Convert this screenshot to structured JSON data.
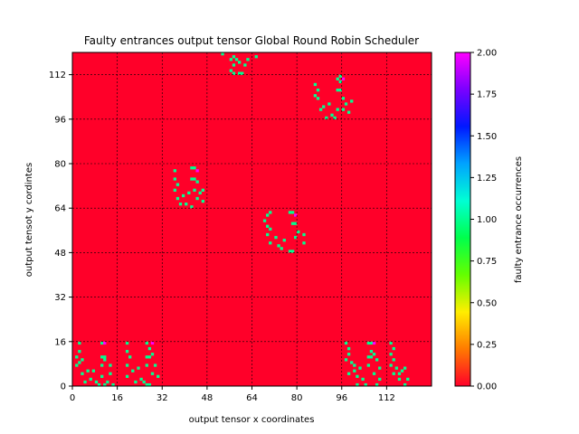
{
  "chart_data": {
    "type": "heatmap",
    "title": "Faulty entrances output tensor Global Round Robin Scheduler",
    "xlabel": "output tensor x coordinates",
    "ylabel": "output tensot y cordintes",
    "xlim": [
      0,
      128
    ],
    "ylim": [
      0,
      120
    ],
    "xticks": [
      "0",
      "16",
      "32",
      "48",
      "64",
      "80",
      "96",
      "112"
    ],
    "yticks": [
      "0",
      "16",
      "32",
      "48",
      "64",
      "80",
      "96",
      "112"
    ],
    "grid": true,
    "colorbar": {
      "label": "faulty entrance occurrences",
      "range": [
        0,
        2
      ],
      "ticks": [
        "0.00",
        "0.25",
        "0.50",
        "0.75",
        "1.00",
        "1.25",
        "1.50",
        "1.75",
        "2.00"
      ],
      "colormap": "gist_rainbow_r",
      "stops": [
        "#ff0029",
        "#ff7a00",
        "#ffee00",
        "#64ff00",
        "#00ff4c",
        "#00ffd4",
        "#00a3ff",
        "#0018ff",
        "#7a00ff",
        "#ff00ff"
      ]
    },
    "background_value": 0,
    "cells": [
      {
        "x": 2,
        "y": 15,
        "v": 1
      },
      {
        "x": 2,
        "y": 12,
        "v": 1
      },
      {
        "x": 1,
        "y": 10,
        "v": 1
      },
      {
        "x": 2,
        "y": 8,
        "v": 1
      },
      {
        "x": 3,
        "y": 9,
        "v": 1
      },
      {
        "x": 1,
        "y": 7,
        "v": 1
      },
      {
        "x": 3,
        "y": 4,
        "v": 1
      },
      {
        "x": 5,
        "y": 5,
        "v": 1
      },
      {
        "x": 4,
        "y": 1,
        "v": 1
      },
      {
        "x": 6,
        "y": 2,
        "v": 1
      },
      {
        "x": 7,
        "y": 5,
        "v": 1
      },
      {
        "x": 8,
        "y": 1,
        "v": 1
      },
      {
        "x": 9,
        "y": 0,
        "v": 1
      },
      {
        "x": 10,
        "y": 15,
        "v": 1
      },
      {
        "x": 11,
        "y": 15,
        "v": 2
      },
      {
        "x": 10,
        "y": 10,
        "v": 1
      },
      {
        "x": 11,
        "y": 10,
        "v": 1
      },
      {
        "x": 11,
        "y": 9,
        "v": 1
      },
      {
        "x": 10,
        "y": 7,
        "v": 1
      },
      {
        "x": 13,
        "y": 7,
        "v": 1
      },
      {
        "x": 13,
        "y": 4,
        "v": 1
      },
      {
        "x": 10,
        "y": 3,
        "v": 1
      },
      {
        "x": 12,
        "y": 1,
        "v": 1
      },
      {
        "x": 11,
        "y": 0,
        "v": 1
      },
      {
        "x": 14,
        "y": 0,
        "v": 1
      },
      {
        "x": 19,
        "y": 15,
        "v": 1
      },
      {
        "x": 19,
        "y": 12,
        "v": 1
      },
      {
        "x": 20,
        "y": 10,
        "v": 1
      },
      {
        "x": 19,
        "y": 7,
        "v": 1
      },
      {
        "x": 21,
        "y": 5,
        "v": 1
      },
      {
        "x": 19,
        "y": 3,
        "v": 1
      },
      {
        "x": 22,
        "y": 1,
        "v": 1
      },
      {
        "x": 23,
        "y": 6,
        "v": 1
      },
      {
        "x": 24,
        "y": 2,
        "v": 1
      },
      {
        "x": 25,
        "y": 1,
        "v": 1
      },
      {
        "x": 26,
        "y": 0,
        "v": 1
      },
      {
        "x": 27,
        "y": 0,
        "v": 1
      },
      {
        "x": 26,
        "y": 15,
        "v": 1
      },
      {
        "x": 28,
        "y": 15,
        "v": 2
      },
      {
        "x": 27,
        "y": 13,
        "v": 1
      },
      {
        "x": 26,
        "y": 10,
        "v": 1
      },
      {
        "x": 27,
        "y": 10,
        "v": 1
      },
      {
        "x": 28,
        "y": 11,
        "v": 1
      },
      {
        "x": 26,
        "y": 7,
        "v": 1
      },
      {
        "x": 29,
        "y": 7,
        "v": 1
      },
      {
        "x": 28,
        "y": 4,
        "v": 1
      },
      {
        "x": 30,
        "y": 3,
        "v": 1
      },
      {
        "x": 97,
        "y": 15,
        "v": 1
      },
      {
        "x": 98,
        "y": 13,
        "v": 1
      },
      {
        "x": 98,
        "y": 11,
        "v": 1
      },
      {
        "x": 97,
        "y": 9,
        "v": 1
      },
      {
        "x": 99,
        "y": 8,
        "v": 1
      },
      {
        "x": 100,
        "y": 7,
        "v": 1
      },
      {
        "x": 98,
        "y": 4,
        "v": 1
      },
      {
        "x": 100,
        "y": 5,
        "v": 1
      },
      {
        "x": 101,
        "y": 3,
        "v": 1
      },
      {
        "x": 102,
        "y": 6,
        "v": 1
      },
      {
        "x": 103,
        "y": 2,
        "v": 1
      },
      {
        "x": 101,
        "y": 0,
        "v": 1
      },
      {
        "x": 104,
        "y": 0,
        "v": 1
      },
      {
        "x": 105,
        "y": 15,
        "v": 1
      },
      {
        "x": 106,
        "y": 15,
        "v": 1
      },
      {
        "x": 107,
        "y": 15,
        "v": 2
      },
      {
        "x": 106,
        "y": 12,
        "v": 1
      },
      {
        "x": 105,
        "y": 10,
        "v": 1
      },
      {
        "x": 106,
        "y": 10,
        "v": 1
      },
      {
        "x": 107,
        "y": 11,
        "v": 1
      },
      {
        "x": 108,
        "y": 9,
        "v": 1
      },
      {
        "x": 105,
        "y": 7,
        "v": 1
      },
      {
        "x": 109,
        "y": 6,
        "v": 1
      },
      {
        "x": 107,
        "y": 4,
        "v": 1
      },
      {
        "x": 109,
        "y": 2,
        "v": 1
      },
      {
        "x": 108,
        "y": 0,
        "v": 1
      },
      {
        "x": 113,
        "y": 15,
        "v": 1
      },
      {
        "x": 114,
        "y": 13,
        "v": 1
      },
      {
        "x": 113,
        "y": 11,
        "v": 1
      },
      {
        "x": 114,
        "y": 9,
        "v": 1
      },
      {
        "x": 113,
        "y": 7,
        "v": 1
      },
      {
        "x": 115,
        "y": 6,
        "v": 1
      },
      {
        "x": 114,
        "y": 4,
        "v": 1
      },
      {
        "x": 116,
        "y": 4,
        "v": 1
      },
      {
        "x": 117,
        "y": 5,
        "v": 1
      },
      {
        "x": 118,
        "y": 6,
        "v": 1
      },
      {
        "x": 116,
        "y": 2,
        "v": 1
      },
      {
        "x": 119,
        "y": 2,
        "v": 1
      },
      {
        "x": 118,
        "y": 0,
        "v": 1
      },
      {
        "x": 36,
        "y": 77,
        "v": 1
      },
      {
        "x": 36,
        "y": 74,
        "v": 1
      },
      {
        "x": 37,
        "y": 72,
        "v": 1
      },
      {
        "x": 36,
        "y": 70,
        "v": 1
      },
      {
        "x": 37,
        "y": 67,
        "v": 1
      },
      {
        "x": 38,
        "y": 65,
        "v": 1
      },
      {
        "x": 39,
        "y": 68,
        "v": 1
      },
      {
        "x": 40,
        "y": 65,
        "v": 1
      },
      {
        "x": 41,
        "y": 69,
        "v": 1
      },
      {
        "x": 42,
        "y": 64,
        "v": 1
      },
      {
        "x": 42,
        "y": 78,
        "v": 1
      },
      {
        "x": 43,
        "y": 78,
        "v": 1
      },
      {
        "x": 44,
        "y": 77,
        "v": 2
      },
      {
        "x": 42,
        "y": 74,
        "v": 1
      },
      {
        "x": 43,
        "y": 74,
        "v": 1
      },
      {
        "x": 44,
        "y": 73,
        "v": 1
      },
      {
        "x": 45,
        "y": 69,
        "v": 1
      },
      {
        "x": 43,
        "y": 70,
        "v": 1
      },
      {
        "x": 44,
        "y": 67,
        "v": 1
      },
      {
        "x": 46,
        "y": 66,
        "v": 1
      },
      {
        "x": 46,
        "y": 70,
        "v": 1
      },
      {
        "x": 69,
        "y": 61,
        "v": 1
      },
      {
        "x": 70,
        "y": 62,
        "v": 1
      },
      {
        "x": 68,
        "y": 59,
        "v": 1
      },
      {
        "x": 69,
        "y": 57,
        "v": 1
      },
      {
        "x": 70,
        "y": 56,
        "v": 1
      },
      {
        "x": 69,
        "y": 54,
        "v": 1
      },
      {
        "x": 70,
        "y": 51,
        "v": 1
      },
      {
        "x": 72,
        "y": 53,
        "v": 1
      },
      {
        "x": 73,
        "y": 50,
        "v": 1
      },
      {
        "x": 74,
        "y": 49,
        "v": 1
      },
      {
        "x": 75,
        "y": 52,
        "v": 1
      },
      {
        "x": 77,
        "y": 48,
        "v": 1
      },
      {
        "x": 78,
        "y": 48,
        "v": 1
      },
      {
        "x": 77,
        "y": 62,
        "v": 1
      },
      {
        "x": 78,
        "y": 62,
        "v": 1
      },
      {
        "x": 79,
        "y": 61,
        "v": 2
      },
      {
        "x": 78,
        "y": 58,
        "v": 1
      },
      {
        "x": 79,
        "y": 58,
        "v": 1
      },
      {
        "x": 80,
        "y": 55,
        "v": 1
      },
      {
        "x": 79,
        "y": 53,
        "v": 1
      },
      {
        "x": 82,
        "y": 54,
        "v": 1
      },
      {
        "x": 82,
        "y": 51,
        "v": 1
      },
      {
        "x": 53,
        "y": 119,
        "v": 1
      },
      {
        "x": 56,
        "y": 117,
        "v": 1
      },
      {
        "x": 57,
        "y": 118,
        "v": 1
      },
      {
        "x": 58,
        "y": 117,
        "v": 1
      },
      {
        "x": 59,
        "y": 116,
        "v": 1
      },
      {
        "x": 57,
        "y": 115,
        "v": 1
      },
      {
        "x": 56,
        "y": 113,
        "v": 1
      },
      {
        "x": 57,
        "y": 112,
        "v": 1
      },
      {
        "x": 59,
        "y": 112,
        "v": 1
      },
      {
        "x": 60,
        "y": 112,
        "v": 1
      },
      {
        "x": 61,
        "y": 115,
        "v": 1
      },
      {
        "x": 62,
        "y": 117,
        "v": 1
      },
      {
        "x": 65,
        "y": 118,
        "v": 1
      },
      {
        "x": 86,
        "y": 108,
        "v": 1
      },
      {
        "x": 87,
        "y": 106,
        "v": 1
      },
      {
        "x": 86,
        "y": 104,
        "v": 1
      },
      {
        "x": 87,
        "y": 103,
        "v": 1
      },
      {
        "x": 88,
        "y": 99,
        "v": 1
      },
      {
        "x": 89,
        "y": 100,
        "v": 1
      },
      {
        "x": 90,
        "y": 96,
        "v": 1
      },
      {
        "x": 91,
        "y": 101,
        "v": 1
      },
      {
        "x": 92,
        "y": 97,
        "v": 1
      },
      {
        "x": 93,
        "y": 96,
        "v": 1
      },
      {
        "x": 94,
        "y": 99,
        "v": 1
      },
      {
        "x": 94,
        "y": 110,
        "v": 1
      },
      {
        "x": 95,
        "y": 111,
        "v": 1
      },
      {
        "x": 95,
        "y": 109,
        "v": 1
      },
      {
        "x": 96,
        "y": 110,
        "v": 2
      },
      {
        "x": 94,
        "y": 106,
        "v": 1
      },
      {
        "x": 95,
        "y": 106,
        "v": 1
      },
      {
        "x": 96,
        "y": 103,
        "v": 1
      },
      {
        "x": 97,
        "y": 101,
        "v": 1
      },
      {
        "x": 96,
        "y": 99,
        "v": 1
      },
      {
        "x": 98,
        "y": 98,
        "v": 1
      },
      {
        "x": 99,
        "y": 102,
        "v": 1
      }
    ]
  }
}
